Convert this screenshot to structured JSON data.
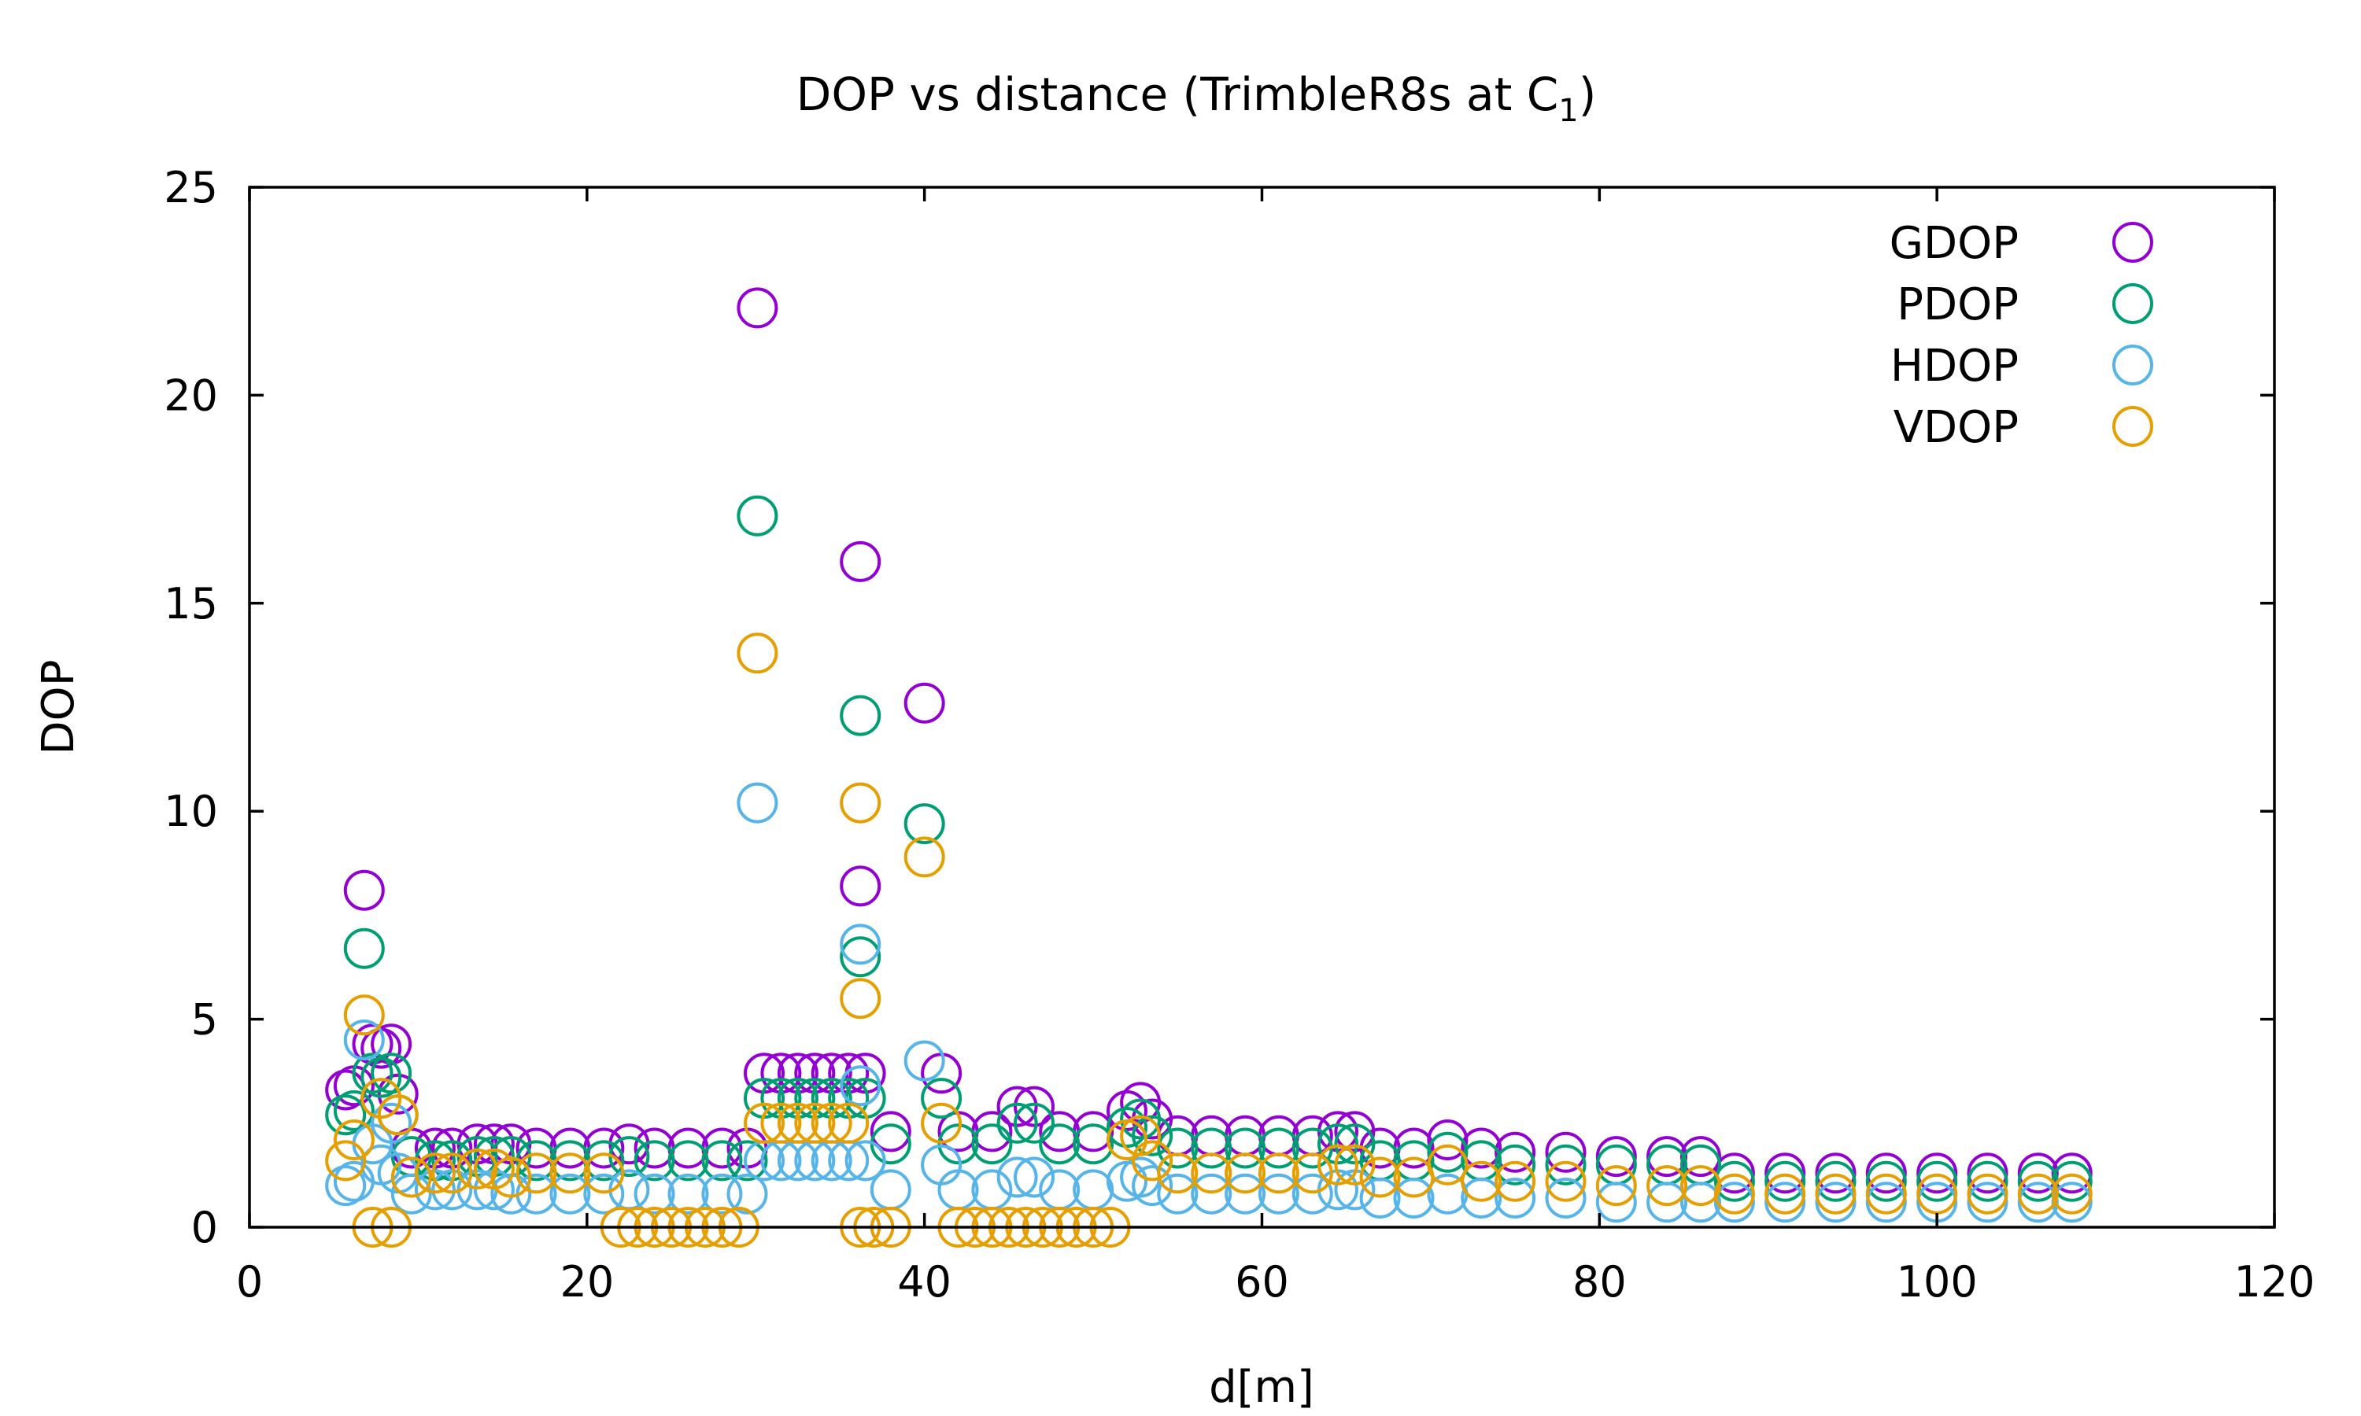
{
  "chart_data": {
    "type": "scatter",
    "title": "DOP vs distance (TrimbleR8s at C",
    "title_subscript": "1",
    "title_close": ")",
    "xlabel": "d[m]",
    "ylabel": "DOP",
    "xlim": [
      0,
      120
    ],
    "ylim": [
      0,
      25
    ],
    "x_ticks": [
      "0",
      "20",
      "40",
      "60",
      "80",
      "100",
      "120"
    ],
    "y_ticks": [
      "0",
      "5",
      "10",
      "15",
      "20",
      "25"
    ],
    "grid": false,
    "legend_position": "top-right",
    "marker": "open-circle",
    "series": [
      {
        "name": "GDOP",
        "color": "#9400d3",
        "points": [
          [
            5.7,
            3.3
          ],
          [
            6.2,
            3.4
          ],
          [
            6.8,
            8.1
          ],
          [
            7.3,
            4.4
          ],
          [
            7.8,
            4.3
          ],
          [
            8.4,
            4.4
          ],
          [
            8.8,
            3.2
          ],
          [
            9.6,
            1.9
          ],
          [
            11,
            1.9
          ],
          [
            12,
            1.9
          ],
          [
            13.5,
            2.0
          ],
          [
            14.5,
            2.0
          ],
          [
            15.5,
            2.0
          ],
          [
            17,
            1.9
          ],
          [
            19,
            1.9
          ],
          [
            21,
            1.9
          ],
          [
            22.5,
            2.0
          ],
          [
            24,
            1.9
          ],
          [
            26,
            1.9
          ],
          [
            28,
            1.9
          ],
          [
            29.5,
            1.9
          ],
          [
            30.1,
            22.1
          ],
          [
            30.5,
            3.7
          ],
          [
            31.5,
            3.7
          ],
          [
            32.5,
            3.7
          ],
          [
            33.5,
            3.7
          ],
          [
            34.5,
            3.7
          ],
          [
            35.5,
            3.7
          ],
          [
            36.2,
            16.0
          ],
          [
            36.2,
            8.2
          ],
          [
            36.5,
            3.7
          ],
          [
            38,
            2.3
          ],
          [
            40,
            12.6
          ],
          [
            41,
            3.7
          ],
          [
            42,
            2.3
          ],
          [
            44,
            2.3
          ],
          [
            45.5,
            2.9
          ],
          [
            46.5,
            2.9
          ],
          [
            48,
            2.3
          ],
          [
            50,
            2.3
          ],
          [
            52,
            2.8
          ],
          [
            52.8,
            3.0
          ],
          [
            53.5,
            2.6
          ],
          [
            55,
            2.2
          ],
          [
            57,
            2.2
          ],
          [
            59,
            2.2
          ],
          [
            61,
            2.2
          ],
          [
            63,
            2.2
          ],
          [
            64.5,
            2.3
          ],
          [
            65.5,
            2.3
          ],
          [
            67,
            1.9
          ],
          [
            69,
            1.9
          ],
          [
            71,
            2.1
          ],
          [
            73,
            1.9
          ],
          [
            75,
            1.8
          ],
          [
            78,
            1.8
          ],
          [
            81,
            1.7
          ],
          [
            84,
            1.7
          ],
          [
            86,
            1.7
          ],
          [
            88,
            1.3
          ],
          [
            91,
            1.3
          ],
          [
            94,
            1.3
          ],
          [
            97,
            1.3
          ],
          [
            100,
            1.3
          ],
          [
            103,
            1.3
          ],
          [
            106,
            1.3
          ],
          [
            108,
            1.3
          ]
        ]
      },
      {
        "name": "PDOP",
        "color": "#009e73",
        "points": [
          [
            5.7,
            2.7
          ],
          [
            6.2,
            2.8
          ],
          [
            6.8,
            6.7
          ],
          [
            7.3,
            3.7
          ],
          [
            7.8,
            3.6
          ],
          [
            8.4,
            3.7
          ],
          [
            8.8,
            2.7
          ],
          [
            9.6,
            1.7
          ],
          [
            11,
            1.6
          ],
          [
            12,
            1.6
          ],
          [
            13.5,
            1.7
          ],
          [
            14.5,
            1.7
          ],
          [
            15.5,
            1.7
          ],
          [
            17,
            1.6
          ],
          [
            19,
            1.6
          ],
          [
            21,
            1.6
          ],
          [
            22.5,
            1.7
          ],
          [
            24,
            1.6
          ],
          [
            26,
            1.6
          ],
          [
            28,
            1.6
          ],
          [
            29.5,
            1.6
          ],
          [
            30.1,
            17.1
          ],
          [
            30.5,
            3.1
          ],
          [
            31.5,
            3.1
          ],
          [
            32.5,
            3.1
          ],
          [
            33.5,
            3.1
          ],
          [
            34.5,
            3.1
          ],
          [
            35.5,
            3.1
          ],
          [
            36.2,
            12.3
          ],
          [
            36.2,
            6.5
          ],
          [
            36.5,
            3.1
          ],
          [
            38,
            2.0
          ],
          [
            40,
            9.7
          ],
          [
            41,
            3.1
          ],
          [
            42,
            2.0
          ],
          [
            44,
            2.0
          ],
          [
            45.5,
            2.5
          ],
          [
            46.5,
            2.5
          ],
          [
            48,
            2.0
          ],
          [
            50,
            2.0
          ],
          [
            52,
            2.4
          ],
          [
            52.8,
            2.6
          ],
          [
            53.5,
            2.2
          ],
          [
            55,
            1.9
          ],
          [
            57,
            1.9
          ],
          [
            59,
            1.9
          ],
          [
            61,
            1.9
          ],
          [
            63,
            1.9
          ],
          [
            64.5,
            2.0
          ],
          [
            65.5,
            2.0
          ],
          [
            67,
            1.6
          ],
          [
            69,
            1.6
          ],
          [
            71,
            1.8
          ],
          [
            73,
            1.6
          ],
          [
            75,
            1.5
          ],
          [
            78,
            1.5
          ],
          [
            81,
            1.5
          ],
          [
            84,
            1.5
          ],
          [
            86,
            1.5
          ],
          [
            88,
            1.1
          ],
          [
            91,
            1.1
          ],
          [
            94,
            1.1
          ],
          [
            97,
            1.1
          ],
          [
            100,
            1.1
          ],
          [
            103,
            1.1
          ],
          [
            106,
            1.1
          ],
          [
            108,
            1.1
          ]
        ]
      },
      {
        "name": "HDOP",
        "color": "#56b4e9",
        "points": [
          [
            5.7,
            1.0
          ],
          [
            6.2,
            1.1
          ],
          [
            6.8,
            4.5
          ],
          [
            7.3,
            2.0
          ],
          [
            7.8,
            1.5
          ],
          [
            8.4,
            2.5
          ],
          [
            8.8,
            1.3
          ],
          [
            9.6,
            0.8
          ],
          [
            11,
            0.9
          ],
          [
            12,
            0.9
          ],
          [
            13.5,
            0.9
          ],
          [
            14.5,
            0.9
          ],
          [
            15.5,
            0.8
          ],
          [
            17,
            0.8
          ],
          [
            19,
            0.8
          ],
          [
            21,
            0.8
          ],
          [
            22.5,
            0.9
          ],
          [
            24,
            0.8
          ],
          [
            26,
            0.8
          ],
          [
            28,
            0.8
          ],
          [
            29.5,
            0.8
          ],
          [
            30.1,
            10.2
          ],
          [
            30.5,
            1.6
          ],
          [
            31.5,
            1.6
          ],
          [
            32.5,
            1.6
          ],
          [
            33.5,
            1.6
          ],
          [
            34.5,
            1.6
          ],
          [
            35.5,
            1.6
          ],
          [
            36.2,
            6.8
          ],
          [
            36.2,
            3.4
          ],
          [
            36.5,
            1.6
          ],
          [
            38,
            0.9
          ],
          [
            40,
            4.0
          ],
          [
            41,
            1.5
          ],
          [
            42,
            0.9
          ],
          [
            44,
            0.9
          ],
          [
            45.5,
            1.2
          ],
          [
            46.5,
            1.2
          ],
          [
            48,
            0.9
          ],
          [
            50,
            0.9
          ],
          [
            52,
            1.1
          ],
          [
            52.8,
            1.2
          ],
          [
            53.5,
            1.0
          ],
          [
            55,
            0.8
          ],
          [
            57,
            0.8
          ],
          [
            59,
            0.8
          ],
          [
            61,
            0.8
          ],
          [
            63,
            0.8
          ],
          [
            64.5,
            0.9
          ],
          [
            65.5,
            0.9
          ],
          [
            67,
            0.7
          ],
          [
            69,
            0.7
          ],
          [
            71,
            0.8
          ],
          [
            73,
            0.7
          ],
          [
            75,
            0.7
          ],
          [
            78,
            0.7
          ],
          [
            81,
            0.6
          ],
          [
            84,
            0.6
          ],
          [
            86,
            0.6
          ],
          [
            88,
            0.6
          ],
          [
            91,
            0.6
          ],
          [
            94,
            0.6
          ],
          [
            97,
            0.6
          ],
          [
            100,
            0.6
          ],
          [
            103,
            0.6
          ],
          [
            106,
            0.6
          ],
          [
            108,
            0.6
          ]
        ]
      },
      {
        "name": "VDOP",
        "color": "#e69f00",
        "points": [
          [
            5.7,
            1.6
          ],
          [
            6.2,
            2.1
          ],
          [
            6.8,
            5.1
          ],
          [
            7.3,
            0.0
          ],
          [
            7.8,
            3.1
          ],
          [
            8.4,
            0.0
          ],
          [
            8.8,
            2.7
          ],
          [
            9.6,
            1.2
          ],
          [
            11,
            1.3
          ],
          [
            12,
            1.3
          ],
          [
            13.5,
            1.4
          ],
          [
            14.5,
            1.4
          ],
          [
            15.5,
            1.2
          ],
          [
            17,
            1.3
          ],
          [
            19,
            1.3
          ],
          [
            21,
            1.3
          ],
          [
            22,
            0.0
          ],
          [
            23,
            0.0
          ],
          [
            24,
            0.0
          ],
          [
            25,
            0.0
          ],
          [
            26,
            0.0
          ],
          [
            27,
            0.0
          ],
          [
            28,
            0.0
          ],
          [
            29,
            0.0
          ],
          [
            30.1,
            13.8
          ],
          [
            30.5,
            2.5
          ],
          [
            31.5,
            2.5
          ],
          [
            32.5,
            2.5
          ],
          [
            33.5,
            2.5
          ],
          [
            34.5,
            2.5
          ],
          [
            35.5,
            2.5
          ],
          [
            36.2,
            10.2
          ],
          [
            36.2,
            5.5
          ],
          [
            36.2,
            0.0
          ],
          [
            37,
            0.0
          ],
          [
            38,
            0.0
          ],
          [
            40,
            8.9
          ],
          [
            41,
            2.5
          ],
          [
            42,
            0.0
          ],
          [
            43,
            0.0
          ],
          [
            44,
            0.0
          ],
          [
            45,
            0.0
          ],
          [
            46,
            0.0
          ],
          [
            47,
            0.0
          ],
          [
            48,
            0.0
          ],
          [
            49,
            0.0
          ],
          [
            50,
            0.0
          ],
          [
            51,
            0.0
          ],
          [
            52,
            2.1
          ],
          [
            52.8,
            2.2
          ],
          [
            53.5,
            1.6
          ],
          [
            55,
            1.3
          ],
          [
            57,
            1.3
          ],
          [
            59,
            1.3
          ],
          [
            61,
            1.3
          ],
          [
            63,
            1.3
          ],
          [
            64.5,
            1.5
          ],
          [
            65.5,
            1.5
          ],
          [
            67,
            1.2
          ],
          [
            69,
            1.2
          ],
          [
            71,
            1.5
          ],
          [
            73,
            1.1
          ],
          [
            75,
            1.1
          ],
          [
            78,
            1.1
          ],
          [
            81,
            1.0
          ],
          [
            84,
            1.0
          ],
          [
            86,
            1.0
          ],
          [
            88,
            0.8
          ],
          [
            91,
            0.8
          ],
          [
            94,
            0.8
          ],
          [
            97,
            0.8
          ],
          [
            100,
            0.8
          ],
          [
            103,
            0.8
          ],
          [
            106,
            0.8
          ],
          [
            108,
            0.8
          ]
        ]
      }
    ]
  }
}
